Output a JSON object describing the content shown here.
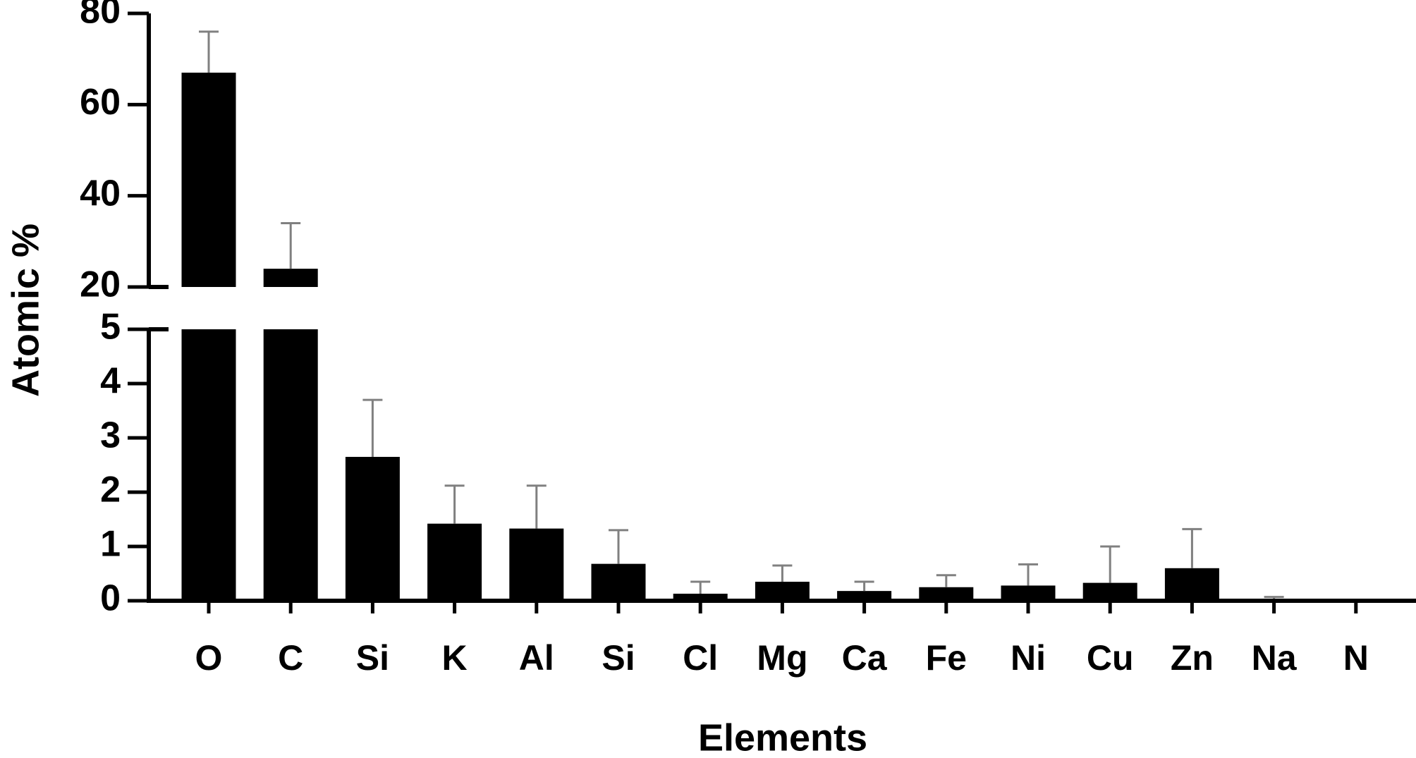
{
  "chart_data": {
    "type": "bar",
    "y_label": "Atomic %",
    "x_label": "Elements",
    "categories": [
      "O",
      "C",
      "Si",
      "K",
      "Al",
      "Si",
      "Cl",
      "Mg",
      "Ca",
      "Fe",
      "Ni",
      "Cu",
      "Zn",
      "Na",
      "N"
    ],
    "values": [
      67,
      24,
      2.65,
      1.42,
      1.33,
      0.68,
      0.13,
      0.35,
      0.18,
      0.25,
      0.28,
      0.33,
      0.6,
      0.03,
      0.01
    ],
    "errors": [
      9,
      10,
      1.05,
      0.7,
      0.79,
      0.62,
      0.22,
      0.3,
      0.17,
      0.22,
      0.39,
      0.67,
      0.72,
      0.04,
      0.01
    ],
    "color": "#000000",
    "error_color": "#808080",
    "y_segments": [
      {
        "ylim": [
          0,
          5
        ],
        "yticks": [
          0,
          1,
          2,
          3,
          4,
          5
        ]
      },
      {
        "ylim": [
          20,
          80
        ],
        "yticks": [
          20,
          40,
          60,
          80
        ]
      }
    ]
  }
}
